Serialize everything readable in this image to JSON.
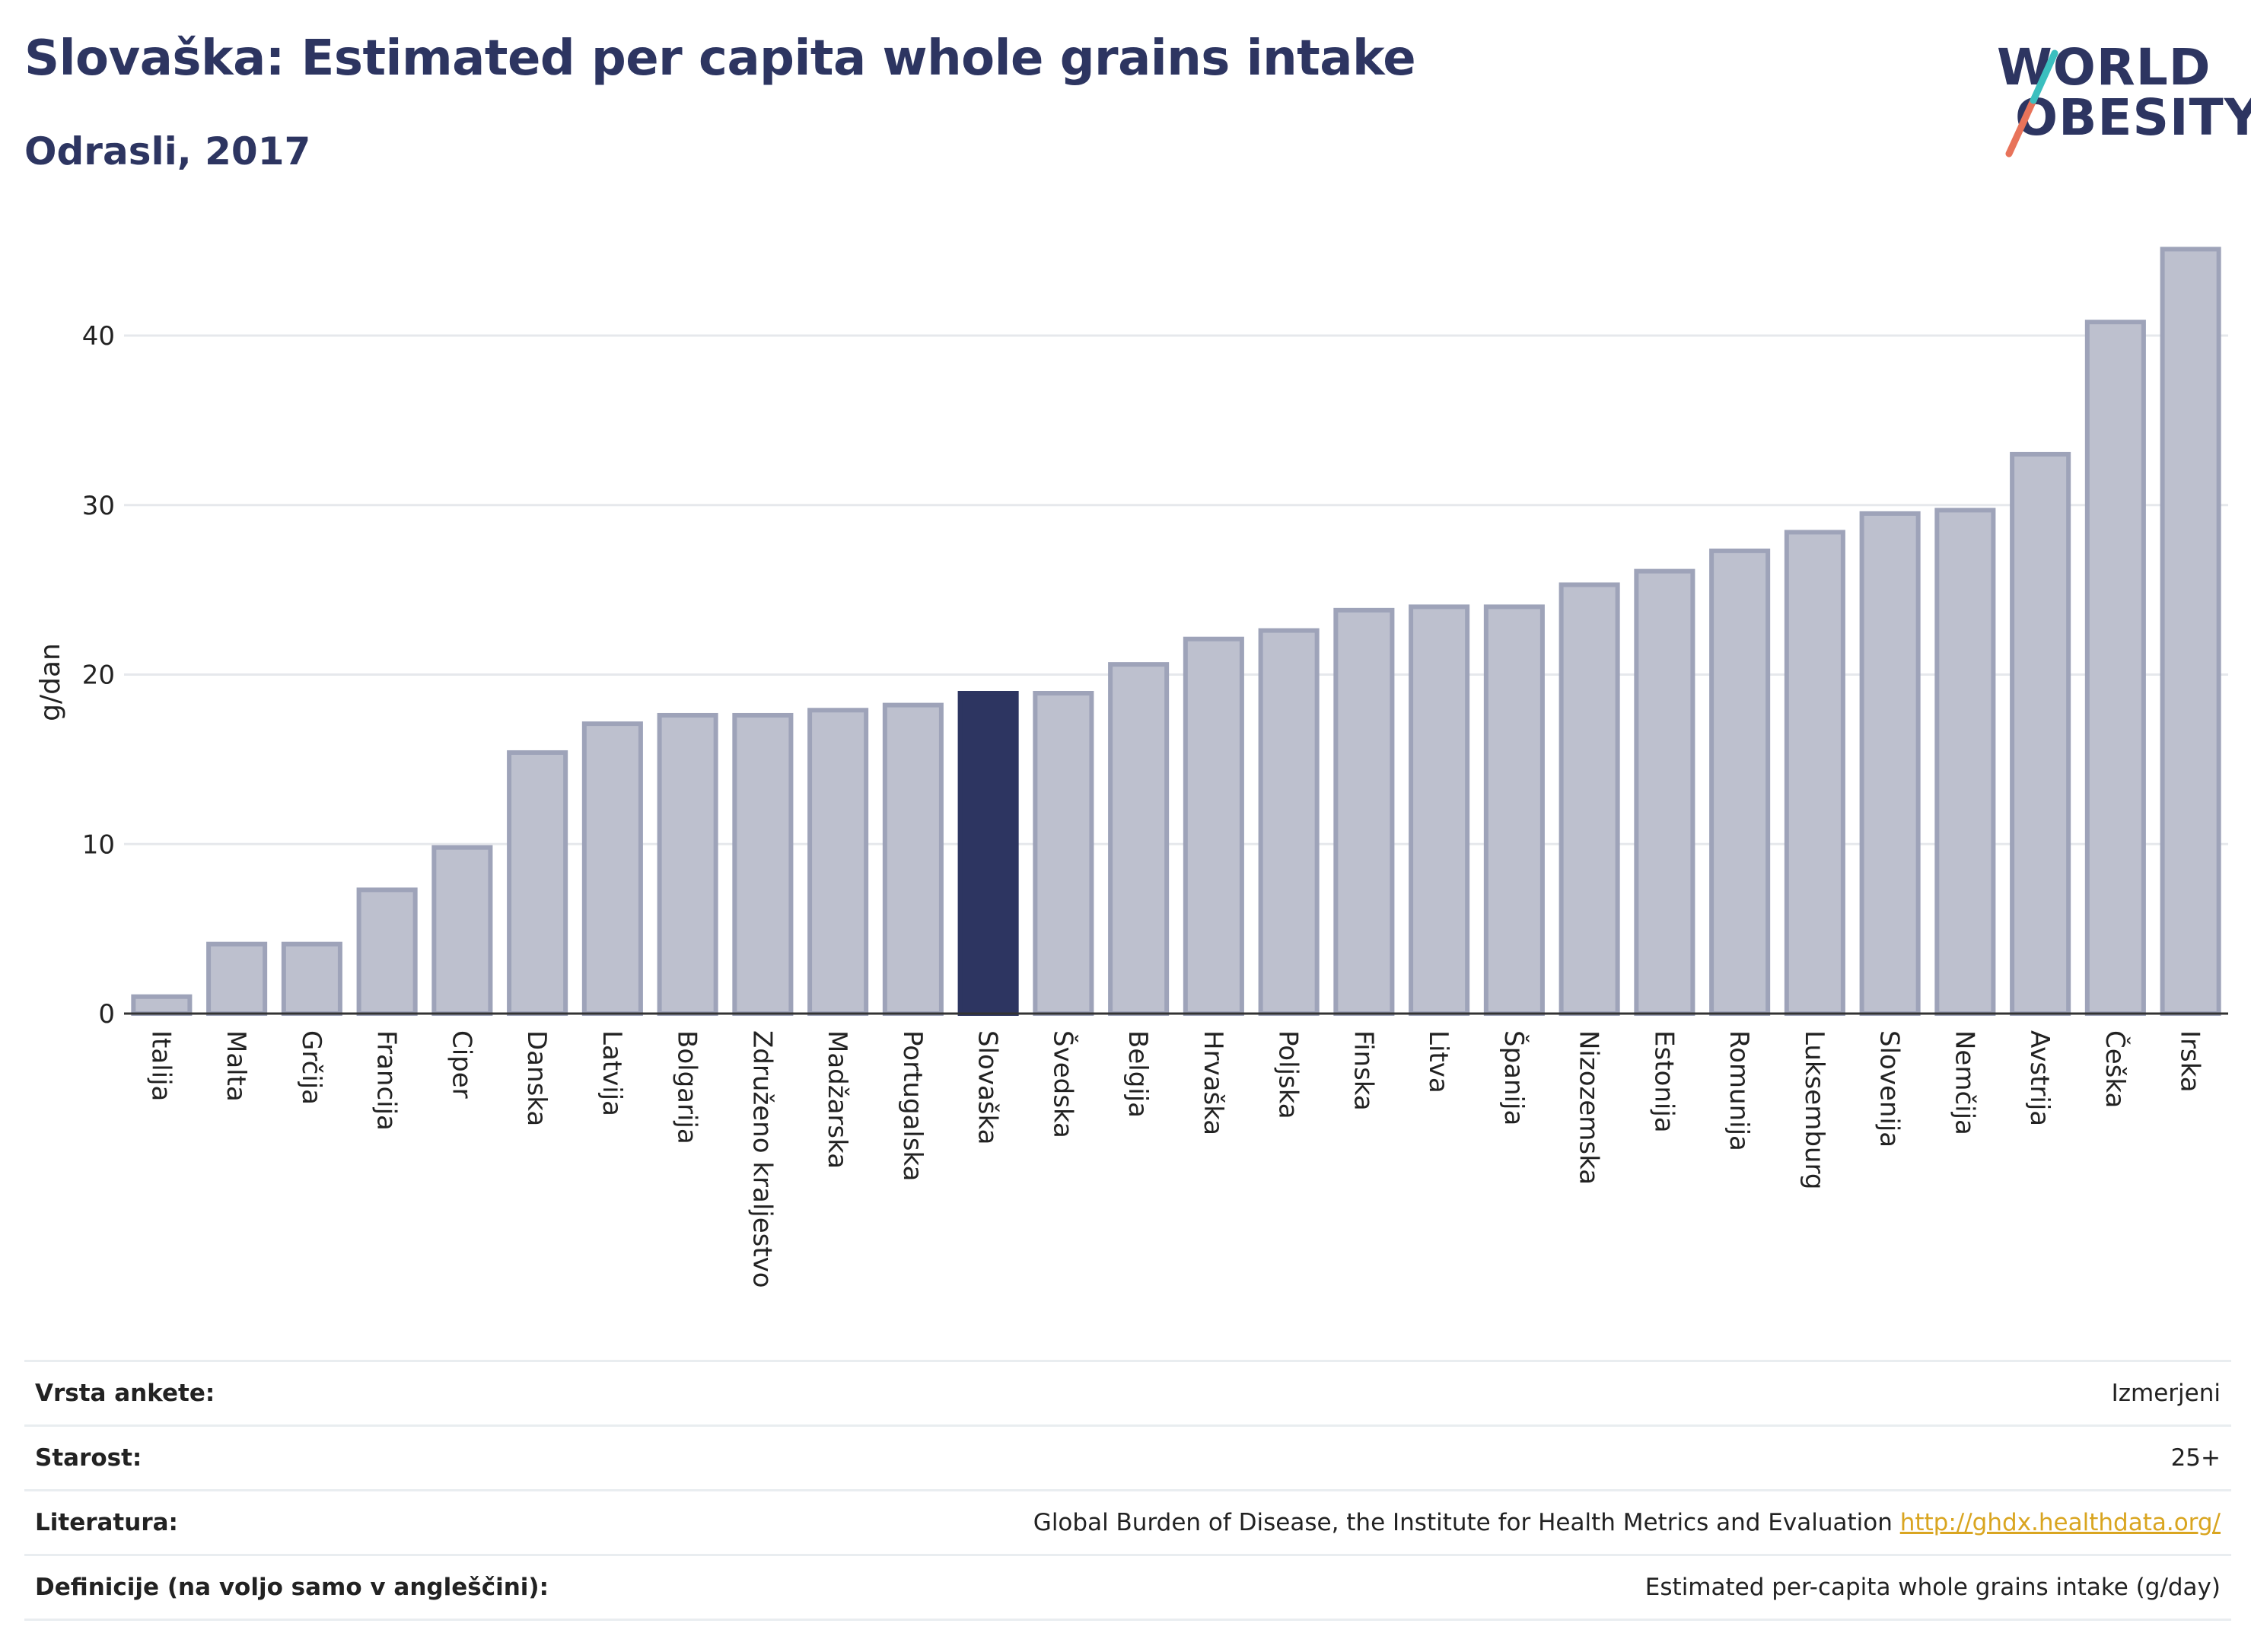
{
  "title": "Slovaška: Estimated per capita whole grains intake",
  "subtitle": "Odrasli, 2017",
  "logo": {
    "line1": "WORLD",
    "line2": "OBESITY"
  },
  "colors": {
    "highlight": "#2d3561",
    "bar": "#bdc0ce",
    "bar_border": "#9ea3b9",
    "accent_teal": "#3bbfbf",
    "accent_red": "#e8735a"
  },
  "chart_data": {
    "type": "bar",
    "ylabel": "g/dan",
    "xlabel": "",
    "ylim": [
      0,
      46
    ],
    "yticks": [
      0,
      10,
      20,
      30,
      40
    ],
    "grid": true,
    "highlight": "Slovaška",
    "categories": [
      "Italija",
      "Malta",
      "Grčija",
      "Francija",
      "Ciper",
      "Danska",
      "Latvija",
      "Bolgarija",
      "Združeno kraljestvo",
      "Madžarska",
      "Portugalska",
      "Slovaška",
      "Švedska",
      "Belgija",
      "Hrvaška",
      "Poljska",
      "Finska",
      "Litva",
      "Španija",
      "Nizozemska",
      "Estonija",
      "Romunija",
      "Luksemburg",
      "Slovenija",
      "Nemčija",
      "Avstrija",
      "Češka",
      "Irska"
    ],
    "values": [
      1.0,
      4.1,
      4.1,
      7.3,
      9.8,
      15.4,
      17.1,
      17.6,
      17.6,
      17.9,
      18.2,
      18.9,
      18.9,
      20.6,
      22.1,
      22.6,
      23.8,
      24.0,
      24.0,
      25.3,
      26.1,
      27.3,
      28.4,
      29.5,
      29.7,
      33.0,
      40.8,
      45.1
    ]
  },
  "meta": [
    {
      "label": "Vrsta ankete:",
      "value": "Izmerjeni"
    },
    {
      "label": "Starost:",
      "value": "25+"
    },
    {
      "label": "Literatura:",
      "value": "Global Burden of Disease, the Institute for Health Metrics and Evaluation",
      "link": "http://ghdx.healthdata.org/"
    },
    {
      "label": "Definicije (na voljo samo v angleščini):",
      "value": "Estimated per-capita whole grains intake (g/day)"
    }
  ]
}
